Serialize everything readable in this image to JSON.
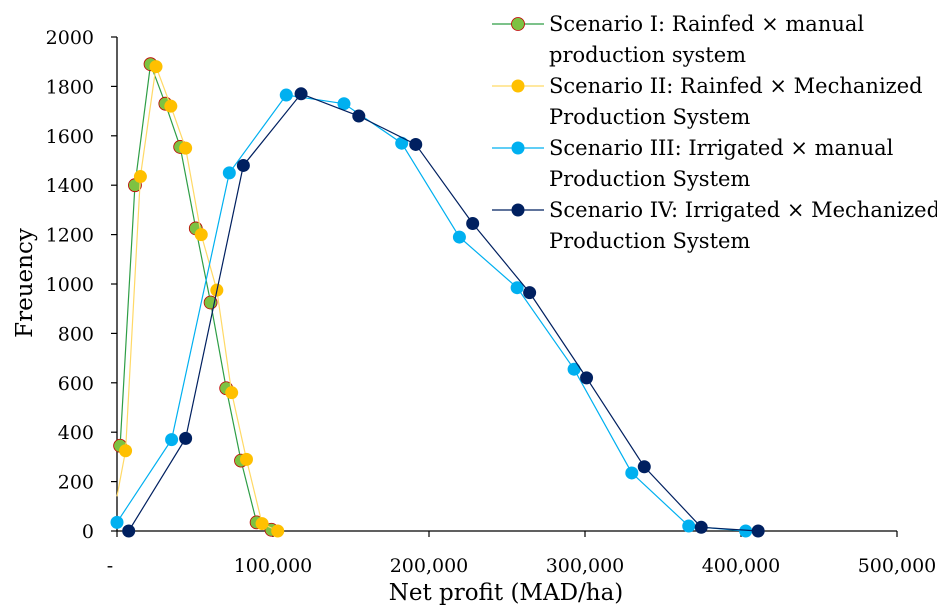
{
  "chart_data": {
    "type": "line",
    "xlabel": "Net profit (MAD/ha)",
    "ylabel": "Freuency",
    "xlim": [
      0,
      500000
    ],
    "ylim": [
      0,
      2000
    ],
    "x_ticks": [
      0,
      100000,
      200000,
      300000,
      400000,
      500000
    ],
    "x_tick_labels": [
      "-",
      "100,000",
      "200,000",
      "300,000",
      "400,000",
      "500,000"
    ],
    "y_ticks": [
      0,
      200,
      400,
      600,
      800,
      1000,
      1200,
      1400,
      1600,
      1800,
      2000
    ],
    "y_tick_labels": [
      "0",
      "200",
      "400",
      "600",
      "800",
      "1000",
      "1200",
      "1400",
      "1600",
      "1800",
      "2000"
    ],
    "grid": false,
    "legend_position": "top-right",
    "series": [
      {
        "name": "Scenario I: Rainfed × manual production system",
        "legend_lines": [
          "Scenario I: Rainfed × manual",
          "production system"
        ],
        "color": "#7DC242",
        "stroke": "#C00000",
        "line_color": "#2E9E45",
        "x": [
          2000,
          11500,
          21500,
          31000,
          40500,
          50500,
          60000,
          70000,
          79500,
          89500,
          99000
        ],
        "y": [
          345,
          1400,
          1890,
          1730,
          1555,
          1225,
          925,
          578,
          285,
          35,
          5
        ]
      },
      {
        "name": "Scenario II: Rainfed × Mechanized Production System",
        "legend_lines": [
          "Scenario II: Rainfed × Mechanized",
          "Production System"
        ],
        "color": "#FFC000",
        "stroke": "#FFC000",
        "line_color": "#FFD966",
        "x": [
          -500,
          5500,
          15000,
          25000,
          34500,
          44000,
          54000,
          64000,
          73500,
          83000,
          93000,
          103000
        ],
        "y": [
          140,
          325,
          1435,
          1880,
          1720,
          1550,
          1200,
          975,
          560,
          290,
          30,
          0
        ]
      },
      {
        "name": "Scenario III: Irrigated × manual Production System",
        "legend_lines": [
          "Scenario III: Irrigated × manual",
          "Production System"
        ],
        "color": "#00B0F0",
        "stroke": "#00B0F0",
        "line_color": "#00B0F0",
        "x": [
          0,
          35000,
          72000,
          108500,
          145500,
          182500,
          219500,
          256500,
          293000,
          330000,
          366500,
          403000
        ],
        "y": [
          35,
          370,
          1450,
          1765,
          1730,
          1570,
          1190,
          985,
          655,
          235,
          20,
          0
        ]
      },
      {
        "name": "Scenario IV: Irrigated × Mechanized Production System",
        "legend_lines": [
          "Scenario IV: Irrigated × Mechanized",
          "Production System"
        ],
        "color": "#002060",
        "stroke": "#002060",
        "line_color": "#002060",
        "x": [
          7500,
          44000,
          81000,
          118000,
          155000,
          191500,
          228000,
          264500,
          301000,
          338000,
          374500,
          411000
        ],
        "y": [
          0,
          375,
          1480,
          1770,
          1680,
          1565,
          1245,
          965,
          620,
          260,
          15,
          0
        ]
      }
    ]
  }
}
